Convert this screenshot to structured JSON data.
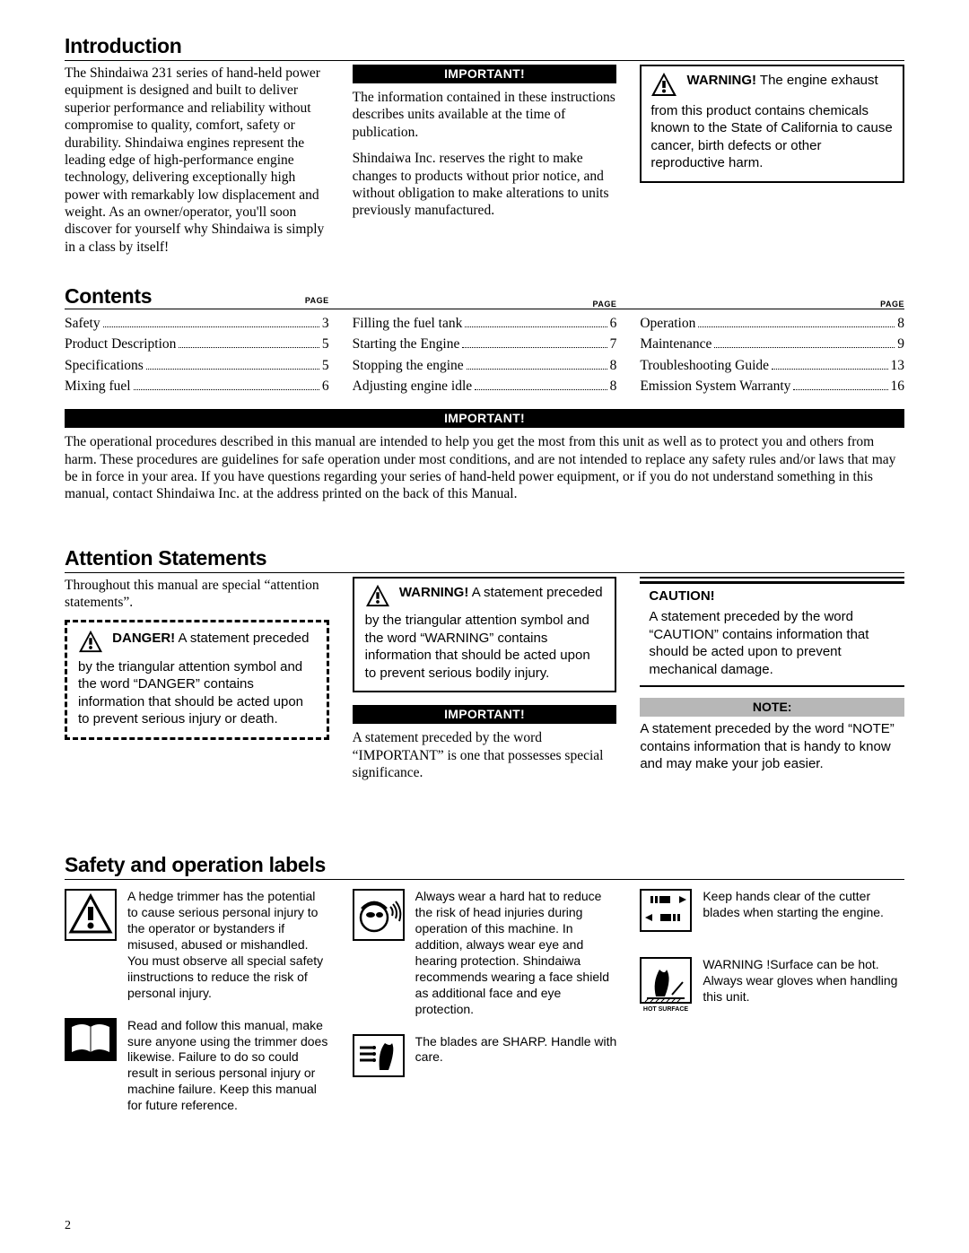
{
  "introduction": {
    "heading": "Introduction",
    "body": "The Shindaiwa 231 series of hand-held power equipment  is designed and built to deliver superior performance and reliability without compromise to quality, comfort, safety or durability.  Shindaiwa engines represent the leading edge of high-performance  engine technology, delivering exceptionally high power with remarkably low displacement and weight. As an owner/operator, you'll soon discover for yourself why Shindaiwa is simply in a class by itself!",
    "important_heading": "IMPORTANT!",
    "important_p1": "The information contained in these instructions describes units available at the time of publication.",
    "important_p2": "Shindaiwa Inc. reserves the right to make changes to products without prior notice, and without obligation to make alterations to units previously manufactured.",
    "warning_heading": "WARNING!",
    "warning_body": "The engine exhaust from this product contains chemicals known to the State of California to cause cancer, birth defects or other reproductive harm."
  },
  "contents": {
    "heading": "Contents",
    "page_label": "PAGE",
    "col1": [
      {
        "title": "Safety",
        "page": "3"
      },
      {
        "title": "Product Description",
        "page": "5"
      },
      {
        "title": "Specifications",
        "page": "5"
      },
      {
        "title": "Mixing fuel",
        "page": "6"
      }
    ],
    "col2": [
      {
        "title": "Filling the fuel tank",
        "page": "6"
      },
      {
        "title": "Starting the Engine",
        "page": "7"
      },
      {
        "title": "Stopping the engine",
        "page": "8"
      },
      {
        "title": "Adjusting engine idle",
        "page": "8"
      }
    ],
    "col3": [
      {
        "title": "Operation",
        "page": "8"
      },
      {
        "title": "Maintenance",
        "page": "9"
      },
      {
        "title": "Troubleshooting Guide",
        "page": "13"
      },
      {
        "title": "Emission System Warranty",
        "page": "16"
      }
    ]
  },
  "important_wide": {
    "heading": "IMPORTANT!",
    "body": "The operational procedures described in this manual are intended to help you get the most from this unit as well as to protect you and others from harm. These procedures are guidelines for safe operation under most conditions, and are not intended to replace any safety rules and/or laws that may be in force in your area. If you have questions regarding your series of  hand-held power equipment, or if you do not understand something in this manual, contact Shindaiwa Inc. at the address printed on the back of this Manual."
  },
  "attention": {
    "heading": "Attention Statements",
    "intro": "Throughout this manual are special “attention statements”.",
    "danger_heading": "DANGER!",
    "danger_body": "A statement preceded by the triangular attention symbol and the word “DANGER” contains information that should be acted upon to prevent serious injury or death.",
    "warning_heading": "WARNING!",
    "warning_body": "A statement preceded by  the triangular attention symbol and  the word “WARNING” contains information that should be acted upon to prevent serious bodily injury.",
    "important_heading": "IMPORTANT!",
    "important_body": "A statement preceded by the word “IMPORTANT” is one that possesses special significance.",
    "caution_heading": "CAUTION!",
    "caution_body": "A statement preceded by the word “CAUTION” contains information that should be acted upon to prevent mechanical damage.",
    "note_heading": "NOTE:",
    "note_body": "A statement preceded by the word “NOTE” contains information that is handy to know and may make your job easier."
  },
  "safety": {
    "heading": "Safety and operation labels",
    "labels": {
      "warn_triangle": "A hedge trimmer has the potential to cause serious personal injury to the operator or bystanders if misused, abused or mishandled. You must observe all special safety iinstructions to reduce the risk of personal injury.",
      "manual": "Read and follow this manual, make sure anyone using the trimmer does likewise. Failure to do so could result in serious personal injury or machine failure. Keep this manual for future reference.",
      "hardhat": "Always wear a hard hat to reduce the risk of head injuries during operation of this machine. In addition, always wear eye and hearing protection. Shindaiwa recommends wearing a face shield as additional face and eye protection.",
      "gloves": "The blades are SHARP. Handle with care.",
      "hands_clear": "Keep hands clear of the cutter blades when starting the engine.",
      "hot_surface": "WARNING !Surface can be hot. Always wear gloves when handling this unit."
    }
  },
  "page_number": "2",
  "colors": {
    "black": "#000000",
    "gray_bar": "#b7b7b7",
    "white": "#ffffff"
  }
}
